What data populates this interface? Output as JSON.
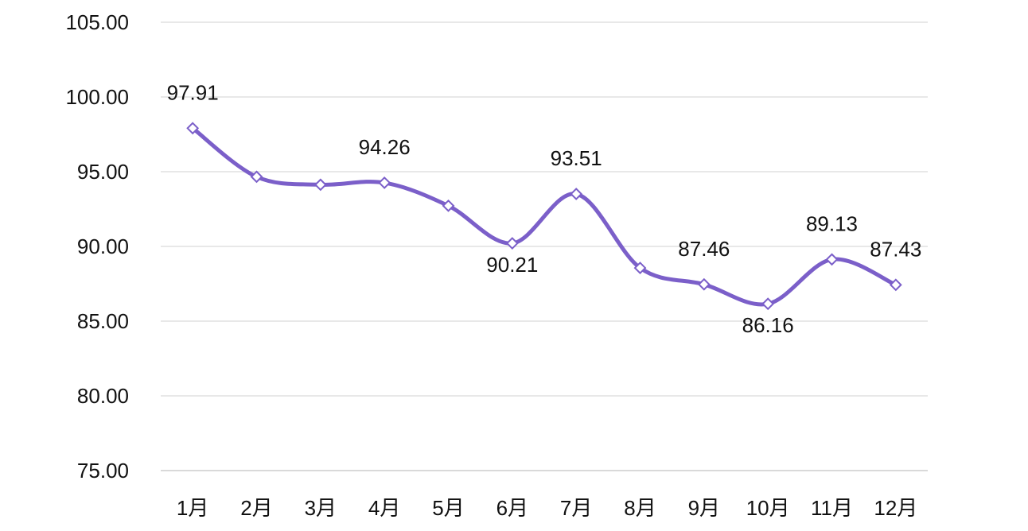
{
  "chart_data": {
    "type": "line",
    "categories": [
      "1月",
      "2月",
      "3月",
      "4月",
      "5月",
      "6月",
      "7月",
      "8月",
      "9月",
      "10月",
      "11月",
      "12月"
    ],
    "series": [
      {
        "values": [
          97.91,
          94.66,
          94.13,
          94.26,
          92.72,
          90.21,
          93.51,
          88.56,
          87.46,
          86.16,
          89.13,
          87.43
        ],
        "color": "#7b5fc9"
      }
    ],
    "data_labels": [
      {
        "index": 0,
        "text": "97.91"
      },
      {
        "index": 3,
        "text": "94.26"
      },
      {
        "index": 5,
        "text": "90.21"
      },
      {
        "index": 6,
        "text": "93.51"
      },
      {
        "index": 8,
        "text": "87.46"
      },
      {
        "index": 9,
        "text": "86.16"
      },
      {
        "index": 10,
        "text": "89.13"
      },
      {
        "index": 11,
        "text": "87.43"
      }
    ],
    "ylim": [
      75,
      105
    ],
    "yticks": [
      "75.00",
      "80.00",
      "85.00",
      "90.00",
      "95.00",
      "100.00",
      "105.00"
    ],
    "grid": true,
    "drop_lines": true,
    "marker": "diamond"
  }
}
